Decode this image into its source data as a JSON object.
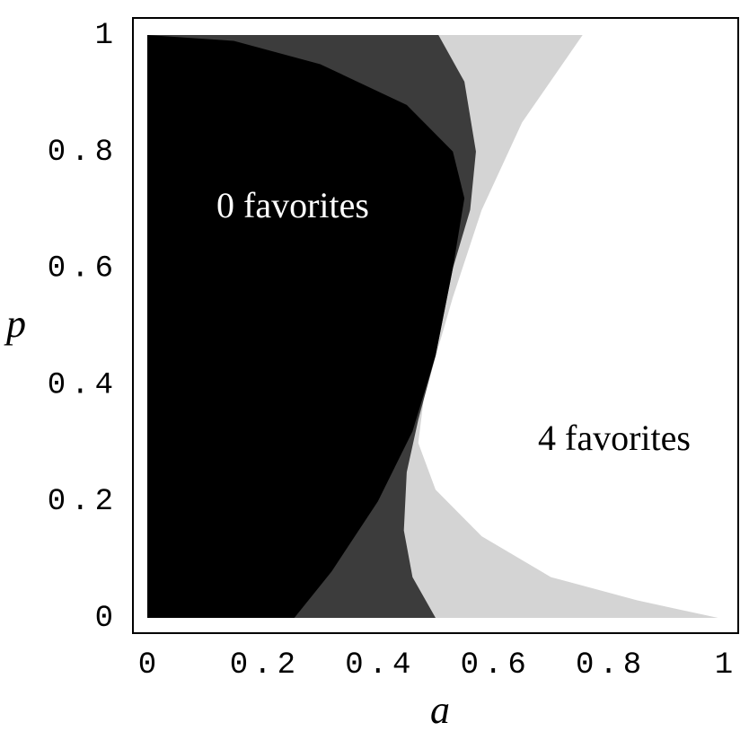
{
  "chart_data": {
    "type": "region",
    "xlabel": "a",
    "ylabel": "p",
    "xlim": [
      0,
      1
    ],
    "ylim": [
      0,
      1
    ],
    "xticks": [
      0,
      0.2,
      0.4,
      0.6,
      0.8,
      1
    ],
    "yticks": [
      0,
      0.2,
      0.4,
      0.6,
      0.8,
      1
    ],
    "annotations": [
      "0 favorites",
      "4 favorites"
    ],
    "series": [
      {
        "color": "#d4d4d4",
        "x": [
          0.755,
          0.65,
          0.58,
          0.53,
          0.48,
          0.47,
          0.5,
          0.58,
          0.7,
          0.85,
          0.99
        ],
        "y": [
          1,
          0.85,
          0.7,
          0.55,
          0.38,
          0.3,
          0.22,
          0.14,
          0.07,
          0.03,
          0
        ]
      },
      {
        "color": "#3c3c3c",
        "x": [
          0.505,
          0.55,
          0.57,
          0.56,
          0.53,
          0.5,
          0.47,
          0.45,
          0.445,
          0.46,
          0.5
        ],
        "y": [
          1,
          0.92,
          0.8,
          0.7,
          0.6,
          0.45,
          0.34,
          0.25,
          0.15,
          0.07,
          0
        ]
      },
      {
        "color": "#000000",
        "x": [
          0.15,
          0.3,
          0.45,
          0.53,
          0.55,
          0.53,
          0.5,
          0.46,
          0.4,
          0.32,
          0.255
        ],
        "y": [
          0.99,
          0.95,
          0.88,
          0.8,
          0.72,
          0.6,
          0.45,
          0.32,
          0.2,
          0.08,
          0
        ]
      }
    ]
  }
}
